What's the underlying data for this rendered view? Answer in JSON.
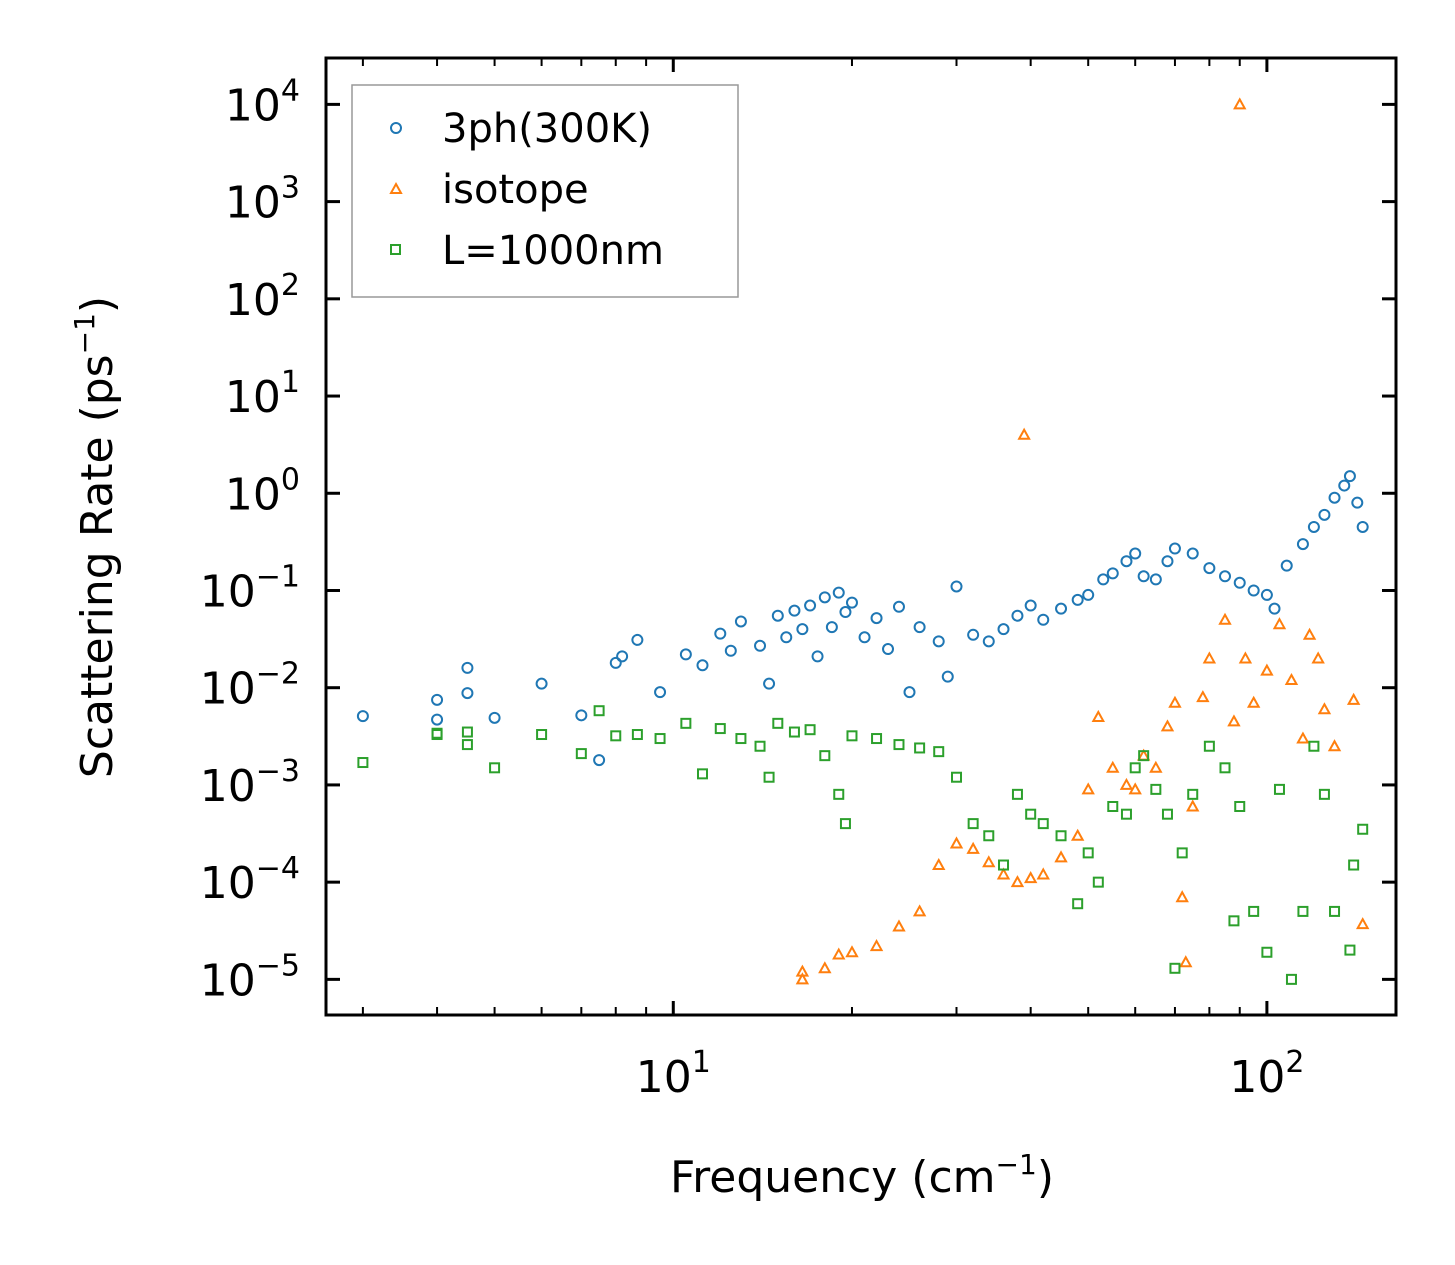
{
  "chart_data": {
    "type": "scatter",
    "xscale": "log",
    "yscale": "log",
    "xlim": [
      2.6,
      165
    ],
    "ylim": [
      4.3e-06,
      30000
    ],
    "xlabel": "Frequency (cm",
    "xlabel_sup": "−1",
    "xlabel_close": ")",
    "ylabel": "Scattering Rate (ps",
    "ylabel_sup": "−1",
    "ylabel_close": ")",
    "legend_position": "top-left",
    "x_ticks": [
      {
        "value": 10,
        "base": "10",
        "exp": "1"
      },
      {
        "value": 100,
        "base": "10",
        "exp": "2"
      }
    ],
    "y_ticks": [
      {
        "value": 10000,
        "base": "10",
        "exp": "4"
      },
      {
        "value": 1000,
        "base": "10",
        "exp": "3"
      },
      {
        "value": 100,
        "base": "10",
        "exp": "2"
      },
      {
        "value": 10,
        "base": "10",
        "exp": "1"
      },
      {
        "value": 1,
        "base": "10",
        "exp": "0"
      },
      {
        "value": 0.1,
        "base": "10",
        "exp": "−1"
      },
      {
        "value": 0.01,
        "base": "10",
        "exp": "−2"
      },
      {
        "value": 0.001,
        "base": "10",
        "exp": "−3"
      },
      {
        "value": 0.0001,
        "base": "10",
        "exp": "−4"
      },
      {
        "value": 1e-05,
        "base": "10",
        "exp": "−5"
      }
    ],
    "series": [
      {
        "name": "3ph(300K)",
        "marker": "circle",
        "color": "#1f77b4",
        "points": [
          [
            3.0,
            0.0051
          ],
          [
            4.0,
            0.0075
          ],
          [
            4.0,
            0.0047
          ],
          [
            4.5,
            0.0088
          ],
          [
            4.5,
            0.016
          ],
          [
            5.0,
            0.0049
          ],
          [
            6.0,
            0.011
          ],
          [
            7.0,
            0.0052
          ],
          [
            7.5,
            0.0018
          ],
          [
            8.0,
            0.018
          ],
          [
            8.2,
            0.021
          ],
          [
            8.7,
            0.031
          ],
          [
            9.5,
            0.009
          ],
          [
            10.5,
            0.022
          ],
          [
            11.2,
            0.017
          ],
          [
            12.0,
            0.036
          ],
          [
            12.5,
            0.024
          ],
          [
            13.0,
            0.048
          ],
          [
            14.0,
            0.027
          ],
          [
            14.5,
            0.011
          ],
          [
            15.0,
            0.055
          ],
          [
            15.5,
            0.033
          ],
          [
            16.0,
            0.062
          ],
          [
            16.5,
            0.04
          ],
          [
            17.0,
            0.07
          ],
          [
            17.5,
            0.021
          ],
          [
            18.0,
            0.085
          ],
          [
            18.5,
            0.042
          ],
          [
            19.0,
            0.095
          ],
          [
            19.5,
            0.06
          ],
          [
            20.0,
            0.075
          ],
          [
            21.0,
            0.033
          ],
          [
            22.0,
            0.052
          ],
          [
            23.0,
            0.025
          ],
          [
            24.0,
            0.068
          ],
          [
            25.0,
            0.009
          ],
          [
            26.0,
            0.042
          ],
          [
            28.0,
            0.03
          ],
          [
            29.0,
            0.013
          ],
          [
            30.0,
            0.11
          ],
          [
            32.0,
            0.035
          ],
          [
            34.0,
            0.03
          ],
          [
            36.0,
            0.04
          ],
          [
            38.0,
            0.055
          ],
          [
            40.0,
            0.07
          ],
          [
            42.0,
            0.05
          ],
          [
            45.0,
            0.065
          ],
          [
            48.0,
            0.08
          ],
          [
            50.0,
            0.09
          ],
          [
            53.0,
            0.13
          ],
          [
            55.0,
            0.15
          ],
          [
            58.0,
            0.2
          ],
          [
            60.0,
            0.24
          ],
          [
            62.0,
            0.14
          ],
          [
            65.0,
            0.13
          ],
          [
            68.0,
            0.2
          ],
          [
            70.0,
            0.27
          ],
          [
            75.0,
            0.24
          ],
          [
            80.0,
            0.17
          ],
          [
            85.0,
            0.14
          ],
          [
            90.0,
            0.12
          ],
          [
            95.0,
            0.1
          ],
          [
            100.0,
            0.09
          ],
          [
            103.0,
            0.065
          ],
          [
            108.0,
            0.18
          ],
          [
            115.0,
            0.3
          ],
          [
            120.0,
            0.45
          ],
          [
            125.0,
            0.6
          ],
          [
            130.0,
            0.9
          ],
          [
            135.0,
            1.2
          ],
          [
            138.0,
            1.5
          ],
          [
            142.0,
            0.8
          ],
          [
            145.0,
            0.45
          ]
        ]
      },
      {
        "name": "isotope",
        "marker": "triangle",
        "color": "#ff7f0e",
        "points": [
          [
            16.5,
            1e-05
          ],
          [
            16.5,
            1.2e-05
          ],
          [
            18.0,
            1.3e-05
          ],
          [
            19.0,
            1.8e-05
          ],
          [
            20.0,
            1.9e-05
          ],
          [
            22.0,
            2.2e-05
          ],
          [
            24.0,
            3.5e-05
          ],
          [
            26.0,
            5e-05
          ],
          [
            28.0,
            0.00015
          ],
          [
            30.0,
            0.00025
          ],
          [
            32.0,
            0.00022
          ],
          [
            34.0,
            0.00016
          ],
          [
            36.0,
            0.00012
          ],
          [
            38.0,
            0.0001
          ],
          [
            39.0,
            4.0
          ],
          [
            40.0,
            0.00011
          ],
          [
            42.0,
            0.00012
          ],
          [
            45.0,
            0.00018
          ],
          [
            48.0,
            0.0003
          ],
          [
            50.0,
            0.0009
          ],
          [
            52.0,
            0.005
          ],
          [
            55.0,
            0.0015
          ],
          [
            58.0,
            0.001
          ],
          [
            60.0,
            0.0009
          ],
          [
            62.0,
            0.002
          ],
          [
            65.0,
            0.0015
          ],
          [
            68.0,
            0.004
          ],
          [
            70.0,
            0.007
          ],
          [
            72.0,
            7e-05
          ],
          [
            73.0,
            1.5e-05
          ],
          [
            75.0,
            0.0006
          ],
          [
            78.0,
            0.008
          ],
          [
            80.0,
            0.02
          ],
          [
            85.0,
            0.05
          ],
          [
            88.0,
            0.0045
          ],
          [
            90.0,
            10000
          ],
          [
            92.0,
            0.02
          ],
          [
            95.0,
            0.007
          ],
          [
            100.0,
            0.015
          ],
          [
            105.0,
            0.045
          ],
          [
            110.0,
            0.012
          ],
          [
            115.0,
            0.003
          ],
          [
            118.0,
            0.035
          ],
          [
            122.0,
            0.02
          ],
          [
            125.0,
            0.006
          ],
          [
            130.0,
            0.0025
          ],
          [
            140.0,
            0.0075
          ],
          [
            145.0,
            3.7e-05
          ]
        ]
      },
      {
        "name": "L=1000nm",
        "marker": "square",
        "color": "#2ca02c",
        "points": [
          [
            3.0,
            0.0017
          ],
          [
            4.0,
            0.0033
          ],
          [
            4.0,
            0.0034
          ],
          [
            4.5,
            0.0035
          ],
          [
            4.5,
            0.0026
          ],
          [
            5.0,
            0.0015
          ],
          [
            6.0,
            0.0033
          ],
          [
            7.0,
            0.0021
          ],
          [
            7.5,
            0.0058
          ],
          [
            8.0,
            0.0032
          ],
          [
            8.7,
            0.0033
          ],
          [
            9.5,
            0.003
          ],
          [
            10.5,
            0.0043
          ],
          [
            11.2,
            0.0013
          ],
          [
            12.0,
            0.0038
          ],
          [
            13.0,
            0.003
          ],
          [
            14.0,
            0.0025
          ],
          [
            14.5,
            0.0012
          ],
          [
            15.0,
            0.0043
          ],
          [
            16.0,
            0.0035
          ],
          [
            17.0,
            0.0037
          ],
          [
            18.0,
            0.002
          ],
          [
            19.0,
            0.0008
          ],
          [
            19.5,
            0.0004
          ],
          [
            20.0,
            0.0032
          ],
          [
            22.0,
            0.003
          ],
          [
            24.0,
            0.0026
          ],
          [
            26.0,
            0.0024
          ],
          [
            28.0,
            0.0022
          ],
          [
            30.0,
            0.0012
          ],
          [
            32.0,
            0.0004
          ],
          [
            34.0,
            0.0003
          ],
          [
            36.0,
            0.00015
          ],
          [
            38.0,
            0.0008
          ],
          [
            40.0,
            0.0005
          ],
          [
            42.0,
            0.0004
          ],
          [
            45.0,
            0.0003
          ],
          [
            48.0,
            6e-05
          ],
          [
            50.0,
            0.0002
          ],
          [
            52.0,
            0.0001
          ],
          [
            55.0,
            0.0006
          ],
          [
            58.0,
            0.0005
          ],
          [
            60.0,
            0.0015
          ],
          [
            62.0,
            0.002
          ],
          [
            65.0,
            0.0009
          ],
          [
            68.0,
            0.0005
          ],
          [
            70.0,
            1.3e-05
          ],
          [
            72.0,
            0.0002
          ],
          [
            75.0,
            0.0008
          ],
          [
            80.0,
            0.0025
          ],
          [
            85.0,
            0.0015
          ],
          [
            88.0,
            4e-05
          ],
          [
            90.0,
            0.0006
          ],
          [
            95.0,
            5e-05
          ],
          [
            100.0,
            1.9e-05
          ],
          [
            105.0,
            0.0009
          ],
          [
            110.0,
            1e-05
          ],
          [
            115.0,
            5e-05
          ],
          [
            120.0,
            0.0025
          ],
          [
            125.0,
            0.0008
          ],
          [
            130.0,
            5e-05
          ],
          [
            138.0,
            2e-05
          ],
          [
            140.0,
            0.00015
          ],
          [
            145.0,
            0.00035
          ]
        ]
      }
    ]
  }
}
